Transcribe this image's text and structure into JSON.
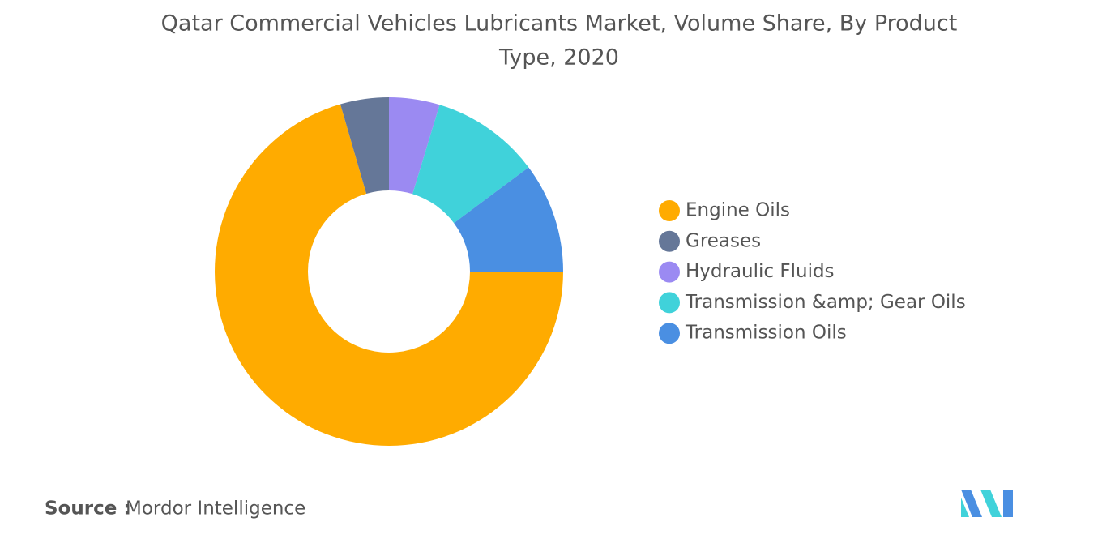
{
  "chart_data": {
    "type": "pie",
    "title": [
      "Qatar Commercial Vehicles Lubricants Market, Volume Share, By Product",
      "Type, 2020"
    ],
    "categories": [
      "Engine Oils",
      "Greases",
      "Hydraulic Fluids",
      "Transmission &amp; Gear Oils",
      "Transmission Oils"
    ],
    "values": [
      70.5,
      4.5,
      4.7,
      10.1,
      10.2
    ],
    "colors": [
      "#ffab00",
      "#657798",
      "#9b8af2",
      "#40d2da",
      "#4a8fe2"
    ],
    "legend": "right"
  },
  "footer": {
    "source_label": "Source :",
    "source": "Mordor Intelligence"
  }
}
